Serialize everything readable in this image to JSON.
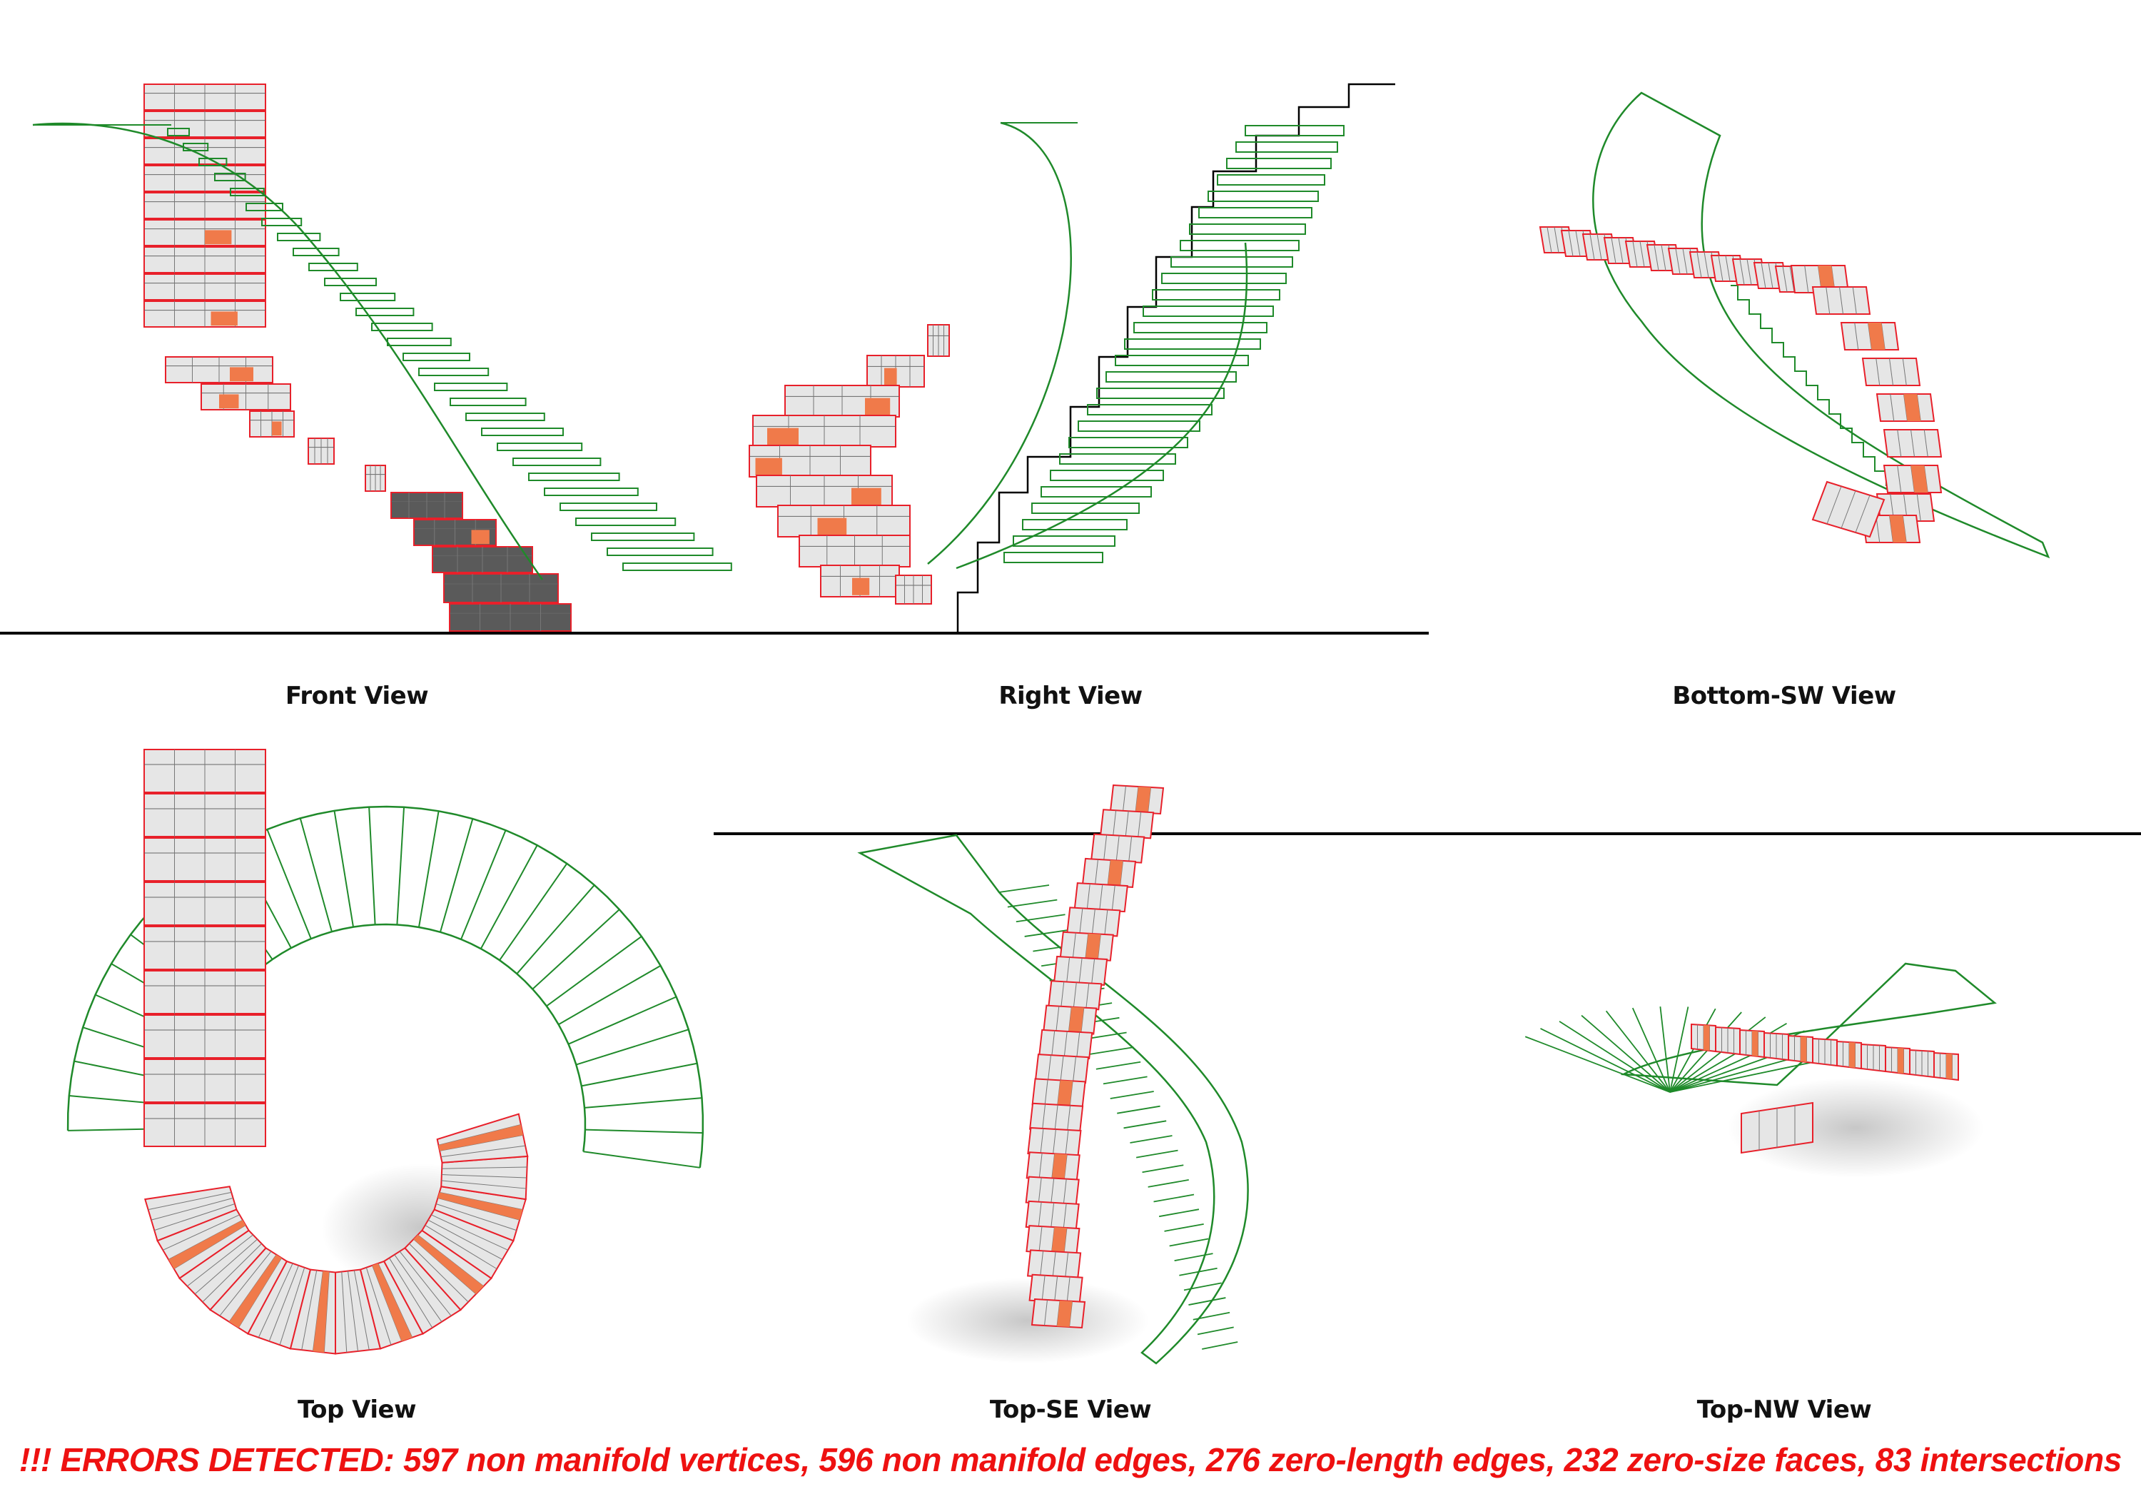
{
  "views": [
    {
      "id": "front",
      "label": "Front View"
    },
    {
      "id": "right",
      "label": "Right View"
    },
    {
      "id": "bottom_sw",
      "label": "Bottom-SW View"
    },
    {
      "id": "top",
      "label": "Top View"
    },
    {
      "id": "top_se",
      "label": "Top-SE View"
    },
    {
      "id": "top_nw",
      "label": "Top-NW View"
    }
  ],
  "error_banner": "!!! ERRORS DETECTED: 597 non manifold vertices, 596 non manifold edges, 276 zero-length edges, 232 zero-size faces, 83 intersections",
  "colors": {
    "error_text": "#ee1111",
    "mesh_outline": "#e8202a",
    "highlight_fill": "#f07a4a",
    "step_fill": "#e6e6e6",
    "reference_stair": "#1f8a2a",
    "ground_line": "#000000",
    "label_text": "#111111"
  }
}
